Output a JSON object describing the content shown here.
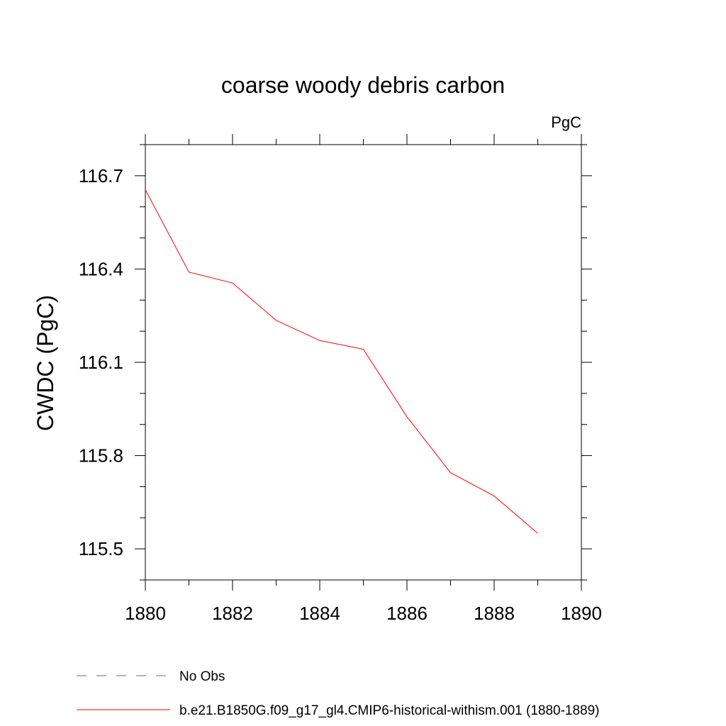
{
  "chart_data": {
    "type": "line",
    "title": "coarse woody debris carbon",
    "units_label": "PgC",
    "ylabel": "CWDC  (PgC)",
    "xlabel": "",
    "xlim": [
      1880,
      1890
    ],
    "ylim": [
      115.4,
      116.8
    ],
    "x_major_ticks": [
      1880,
      1882,
      1884,
      1886,
      1888,
      1890
    ],
    "x_tick_labels": [
      "1880",
      "1882",
      "1884",
      "1886",
      "1888",
      "1890"
    ],
    "x_minor_ticks": [
      1881,
      1883,
      1885,
      1887,
      1889
    ],
    "y_major_ticks": [
      115.5,
      115.8,
      116.1,
      116.4,
      116.7
    ],
    "y_tick_labels": [
      "115.5",
      "115.8",
      "116.1",
      "116.4",
      "116.7"
    ],
    "y_minor_ticks": [
      115.4,
      115.6,
      115.7,
      115.9,
      116.0,
      116.2,
      116.3,
      116.5,
      116.6,
      116.8
    ],
    "grid": false,
    "legend_position": "bottom-left",
    "series": [
      {
        "name": "b.e21.B1850G.f09_g17_gl4.CMIP6-historical-withism.001 (1880-1889)",
        "color": "#ff0000",
        "dash": "solid",
        "x": [
          1880,
          1881,
          1882,
          1883,
          1884,
          1885,
          1886,
          1887,
          1888,
          1889
        ],
        "y": [
          116.655,
          116.39,
          116.355,
          116.235,
          116.17,
          116.142,
          115.925,
          115.745,
          115.67,
          115.55
        ]
      }
    ],
    "legend": [
      {
        "label": "No Obs",
        "color": "#6a5acd",
        "dash": "dashed"
      },
      {
        "label": "b.e21.B1850G.f09_g17_gl4.CMIP6-historical-withism.001 (1880-1889)",
        "color": "#ff0000",
        "dash": "solid"
      }
    ]
  }
}
